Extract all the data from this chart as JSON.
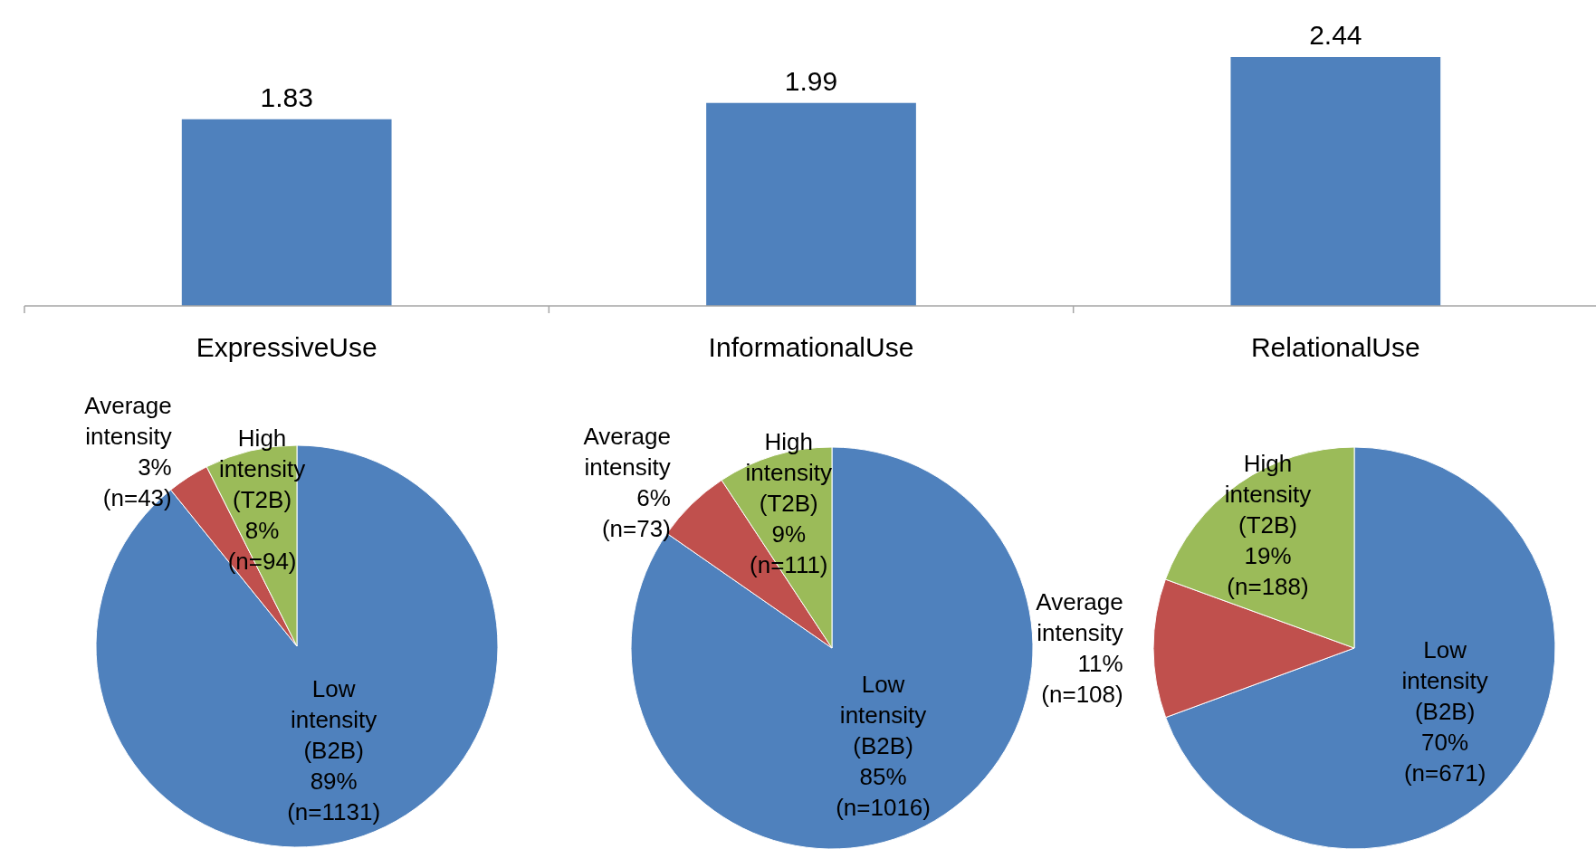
{
  "chart_data": [
    {
      "type": "bar",
      "categories": [
        "ExpressiveUse",
        "InformationalUse",
        "RelationalUse"
      ],
      "values": [
        1.83,
        1.99,
        2.44
      ],
      "color": "#4f81bd",
      "data_labels": true
    },
    {
      "type": "pie",
      "categories": [
        "Low intensity (B2B)",
        "Average intensity",
        "High intensity (T2B)"
      ],
      "values": [
        1131,
        43,
        94
      ],
      "colors": [
        "#4f81bd",
        "#c0504d",
        "#9bbb59"
      ],
      "value_labels": [
        "89%\n(n=1131)",
        "3%\n(n=43)",
        "8%\n(n=94)"
      ]
    },
    {
      "type": "pie",
      "categories": [
        "Low intensity (B2B)",
        "Average intensity",
        "High intensity (T2B)"
      ],
      "values": [
        1016,
        73,
        111
      ],
      "colors": [
        "#4f81bd",
        "#c0504d",
        "#9bbb59"
      ],
      "value_labels": [
        "85%\n(n=1016)",
        "6%\n(n=73)",
        "9%\n(n=111)"
      ]
    },
    {
      "type": "pie",
      "categories": [
        "Low intensity (B2B)",
        "Average intensity",
        "High intensity (T2B)"
      ],
      "values": [
        671,
        108,
        188
      ],
      "colors": [
        "#4f81bd",
        "#c0504d",
        "#9bbb59"
      ],
      "value_labels": [
        "70%\n(n=671)",
        "11%\n(n=108)",
        "19%\n(n=188)"
      ]
    }
  ]
}
